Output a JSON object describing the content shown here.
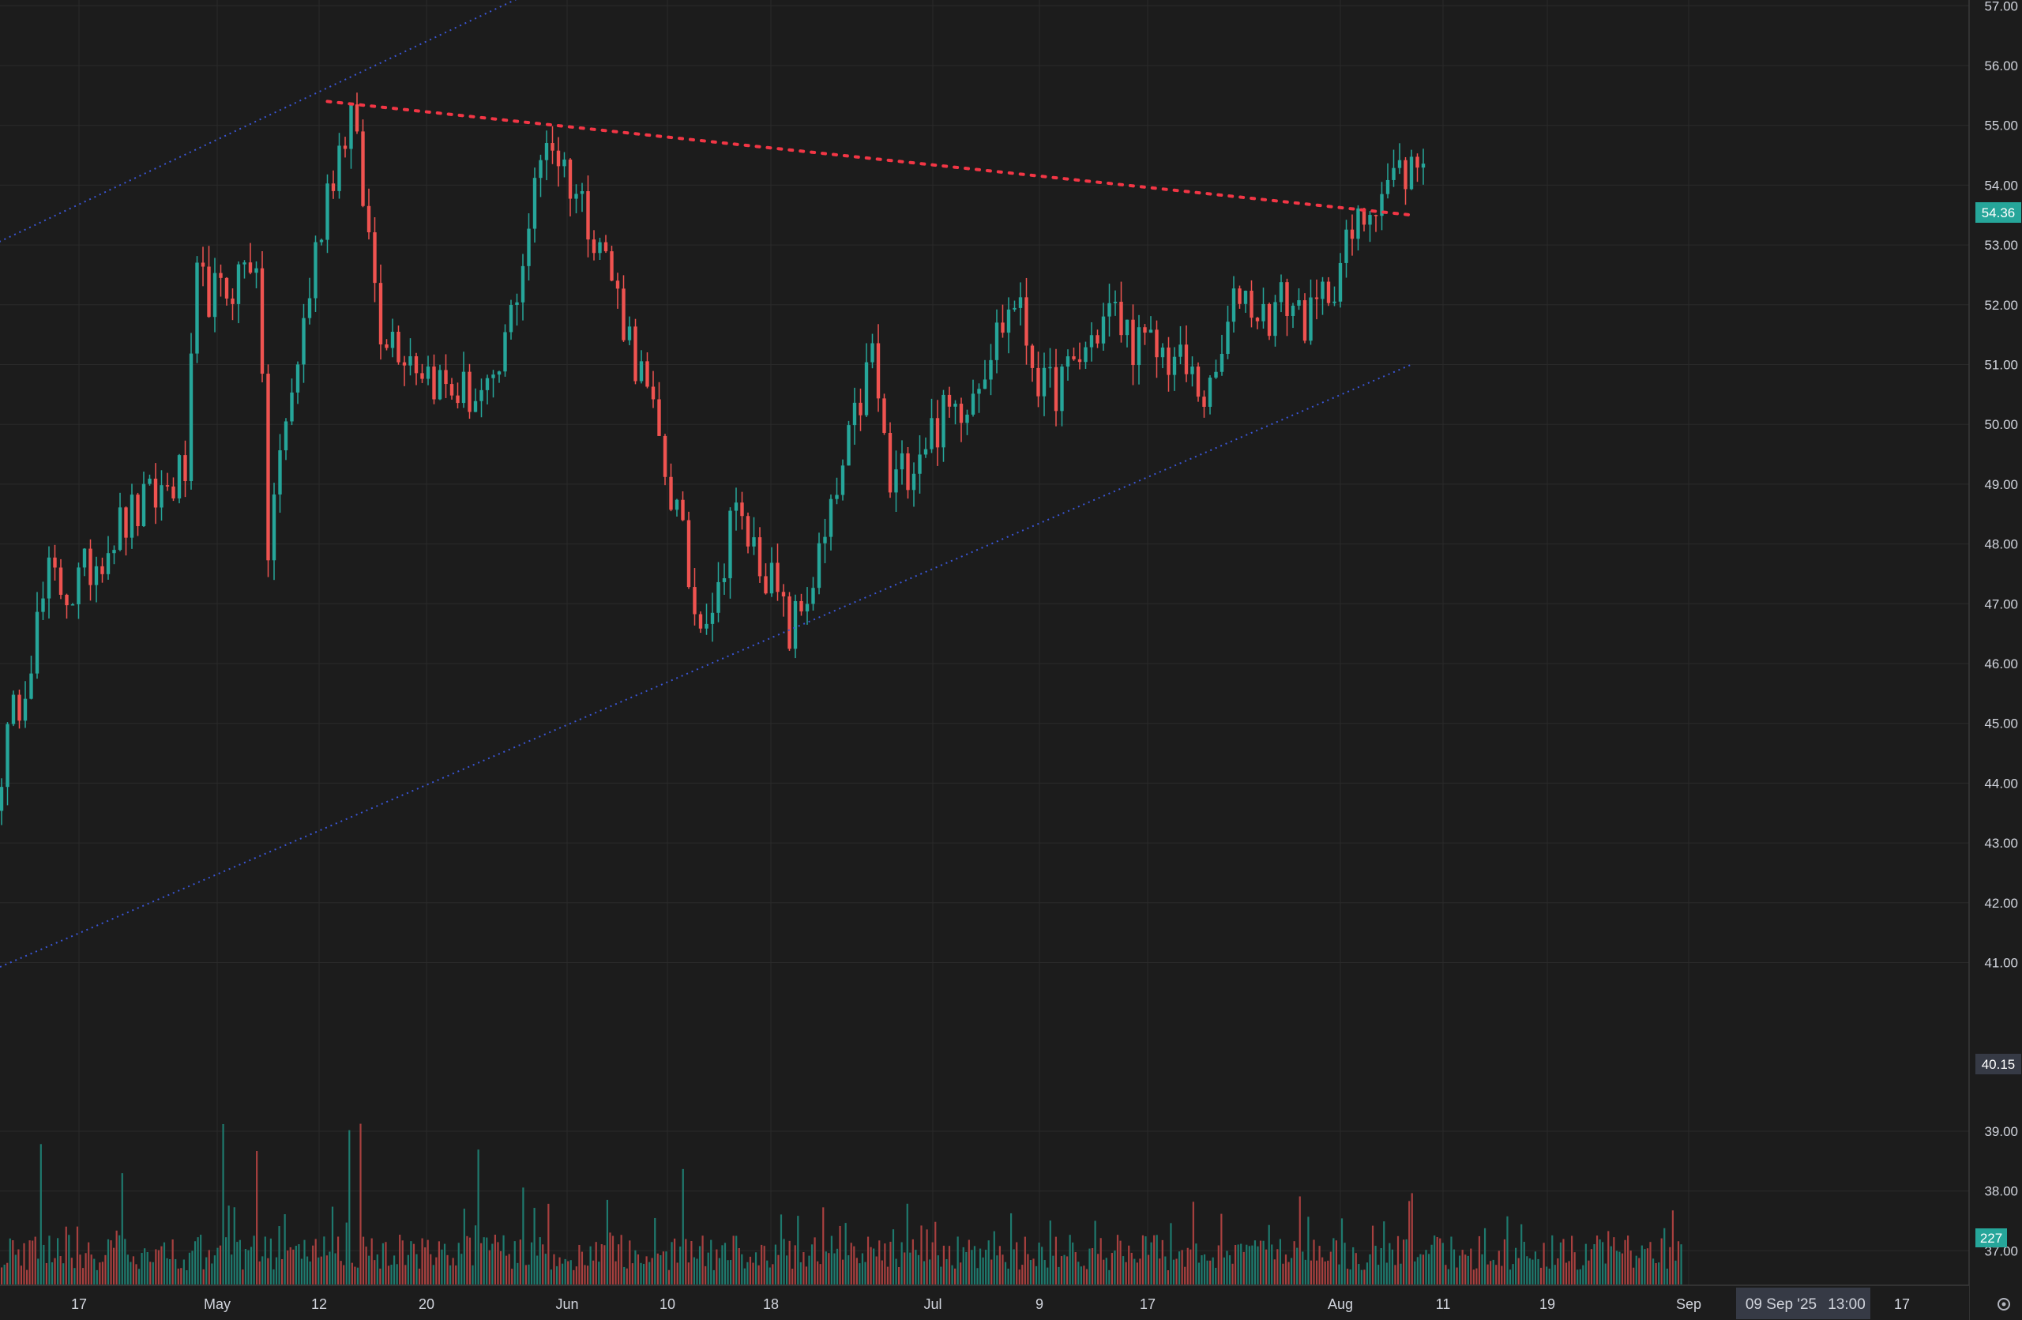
{
  "chart_data": {
    "type": "candlestick",
    "y_axis": {
      "ticks": [
        "57.00",
        "56.00",
        "55.00",
        "54.00",
        "53.00",
        "52.00",
        "51.00",
        "50.00",
        "49.00",
        "48.00",
        "47.00",
        "46.00",
        "45.00",
        "44.00",
        "43.00",
        "42.00",
        "41.00",
        "40.15",
        "39.00",
        "38.00",
        "37.00"
      ],
      "range": [
        36.5,
        57.9
      ],
      "grid": true
    },
    "x_axis": {
      "ticks": [
        "17",
        "May",
        "12",
        "20",
        "Jun",
        "10",
        "18",
        "Jul",
        "9",
        "17",
        "Aug",
        "11",
        "19",
        "Sep",
        "17"
      ],
      "crosshair_date": "09 Sep '25",
      "crosshair_time": "13:00"
    },
    "last_price": {
      "value": 54.36,
      "label": "54.36",
      "color": "#26a69a"
    },
    "marker_price": {
      "label": "40.15"
    },
    "volume": {
      "last_label": "227",
      "color": "#26a69a"
    },
    "anchors": {
      "x": [
        0,
        8,
        12,
        19,
        31,
        33,
        37,
        43,
        45,
        46,
        55,
        59,
        64,
        69,
        75,
        83,
        87,
        92,
        101,
        108,
        114,
        117,
        121,
        123,
        129,
        133,
        135,
        139,
        143,
        147,
        150,
        156,
        163,
        171,
        176,
        180,
        187,
        192,
        198,
        204,
        209,
        213,
        217,
        221,
        228,
        232,
        236,
        240
      ],
      "close": [
        44.3,
        47.4,
        47.2,
        48.2,
        49.2,
        52.3,
        52.1,
        52.9,
        47.9,
        48.8,
        54.0,
        55.2,
        51.7,
        51.2,
        50.6,
        50.4,
        52.3,
        54.9,
        53.1,
        50.8,
        48.5,
        46.9,
        47.1,
        48.6,
        47.6,
        46.5,
        46.9,
        48.0,
        49.6,
        51.2,
        48.9,
        49.8,
        50.5,
        52.1,
        50.5,
        50.8,
        51.9,
        51.3,
        51.1,
        50.4,
        52.3,
        51.8,
        52.1,
        51.7,
        53.1,
        53.9,
        54.2,
        54.36
      ]
    },
    "ohlc_count": 241,
    "lines": [
      {
        "name": "upper-channel-line",
        "style": "dotted",
        "color": "#3a56d6",
        "points": [
          [
            -8,
            52.7
          ],
          [
            119,
            58.6
          ]
        ]
      },
      {
        "name": "lower-channel-line",
        "style": "dotted",
        "color": "#3a56d6",
        "points": [
          [
            -8,
            40.6
          ],
          [
            238,
            51.0
          ]
        ]
      },
      {
        "name": "resistance-line",
        "style": "dotted",
        "color": "#f23645",
        "points": [
          [
            55,
            55.4
          ],
          [
            238,
            53.5
          ]
        ]
      }
    ],
    "colors": {
      "up": "#26a69a",
      "down": "#ef5350",
      "grid": "#2a2a2a",
      "background": "#1c1c1c"
    }
  }
}
